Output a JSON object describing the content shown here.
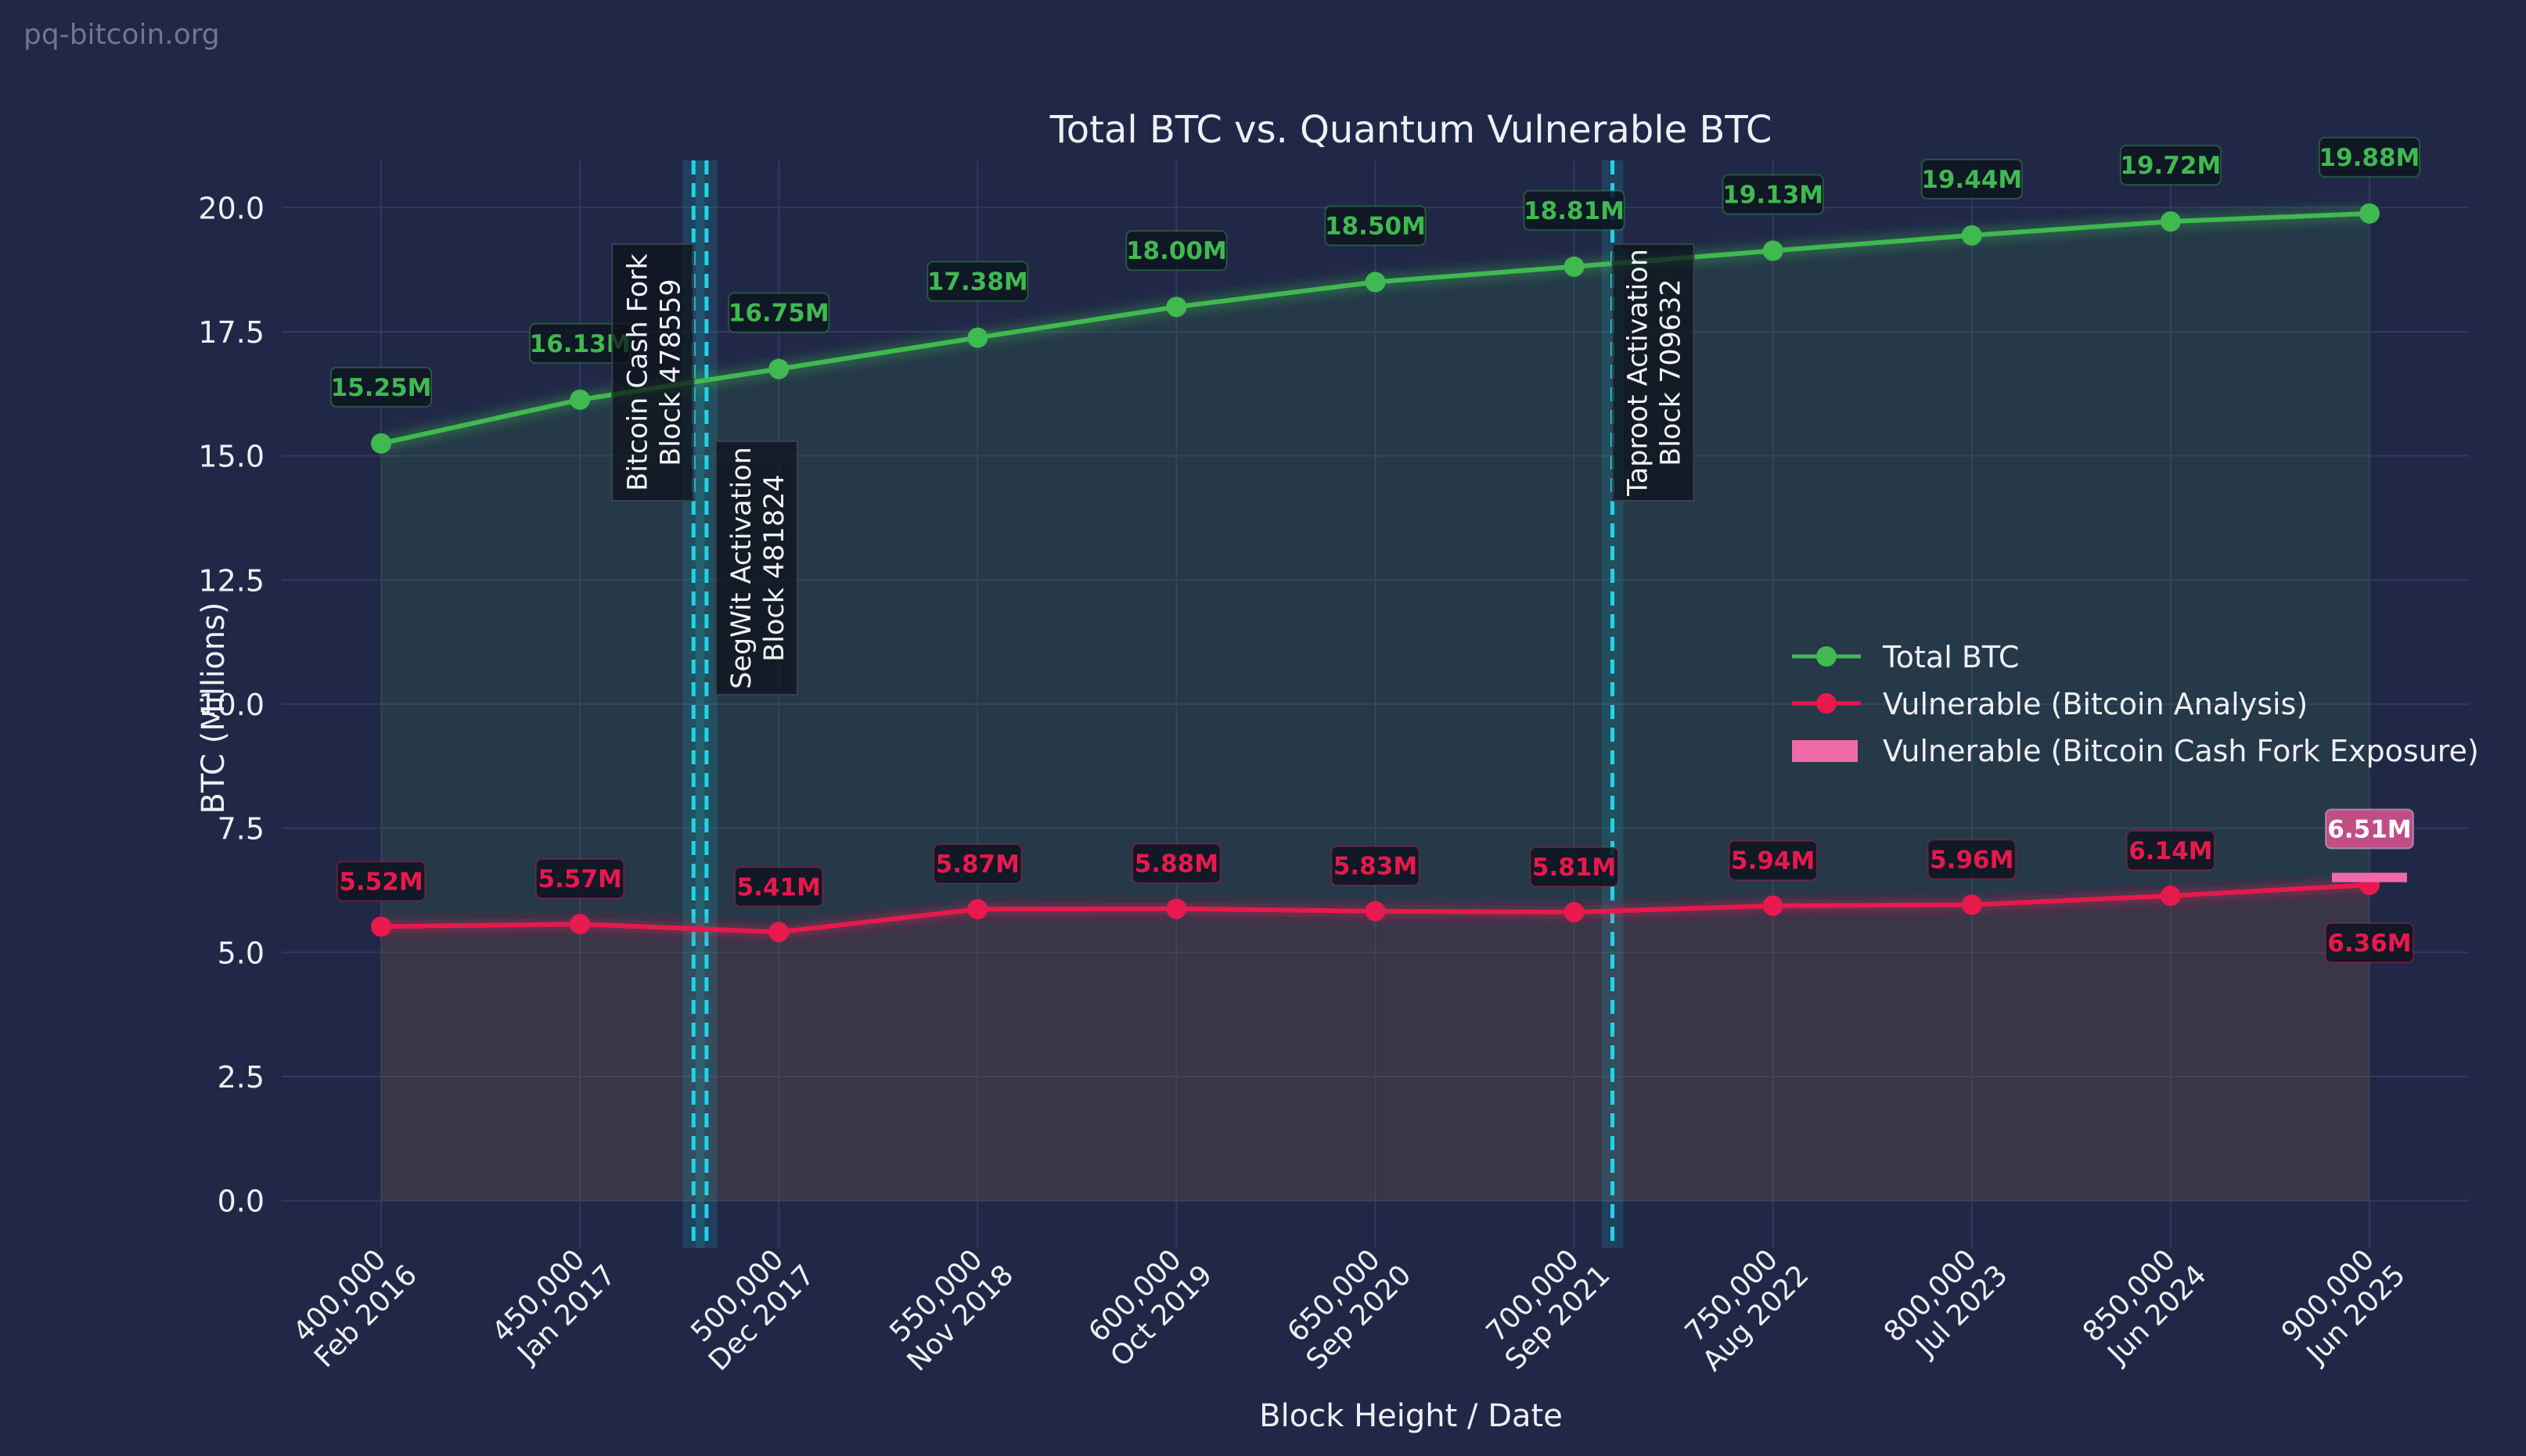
{
  "watermark": "pq-bitcoin.org",
  "chart_data": {
    "type": "line",
    "title": "Total BTC vs. Quantum Vulnerable BTC",
    "xlabel": "Block Height / Date",
    "ylabel": "BTC (Millions)",
    "xlim": [
      375000,
      925000
    ],
    "ylim": [
      -0.95,
      20.95
    ],
    "yticks": [
      0.0,
      2.5,
      5.0,
      7.5,
      10.0,
      12.5,
      15.0,
      17.5,
      20.0
    ],
    "ytick_labels": [
      "0.0",
      "2.5",
      "5.0",
      "7.5",
      "10.0",
      "12.5",
      "15.0",
      "17.5",
      "20.0"
    ],
    "x": [
      400000,
      450000,
      500000,
      550000,
      600000,
      650000,
      700000,
      750000,
      800000,
      850000,
      900000
    ],
    "xtick_labels": [
      {
        "block": "400,000",
        "date": "Feb 2016"
      },
      {
        "block": "450,000",
        "date": "Jan 2017"
      },
      {
        "block": "500,000",
        "date": "Dec 2017"
      },
      {
        "block": "550,000",
        "date": "Nov 2018"
      },
      {
        "block": "600,000",
        "date": "Oct 2019"
      },
      {
        "block": "650,000",
        "date": "Sep 2020"
      },
      {
        "block": "700,000",
        "date": "Sep 2021"
      },
      {
        "block": "750,000",
        "date": "Aug 2022"
      },
      {
        "block": "800,000",
        "date": "Jul 2023"
      },
      {
        "block": "850,000",
        "date": "Jun 2024"
      },
      {
        "block": "900,000",
        "date": "Jun 2025"
      }
    ],
    "grid": true,
    "legend_position": "center-right",
    "series": [
      {
        "name": "Total BTC",
        "color": "#3fb950",
        "values": [
          15.25,
          16.13,
          16.75,
          17.38,
          18.0,
          18.5,
          18.81,
          19.13,
          19.44,
          19.72,
          19.88
        ],
        "labels": [
          "15.25M",
          "16.13M",
          "16.75M",
          "17.38M",
          "18.00M",
          "18.50M",
          "18.81M",
          "19.13M",
          "19.44M",
          "19.72M",
          "19.88M"
        ]
      },
      {
        "name": "Vulnerable (Bitcoin Analysis)",
        "color": "#e8194d",
        "values": [
          5.52,
          5.57,
          5.41,
          5.87,
          5.88,
          5.83,
          5.81,
          5.94,
          5.96,
          6.14,
          6.36
        ],
        "labels": [
          "5.52M",
          "5.57M",
          "5.41M",
          "5.87M",
          "5.88M",
          "5.83M",
          "5.81M",
          "5.94M",
          "5.96M",
          "6.14M",
          "6.36M"
        ]
      },
      {
        "name": "Vulnerable (Bitcoin Cash Fork Exposure)",
        "color": "#f06aa8",
        "x": 900000,
        "value": 6.51,
        "label": "6.51M"
      }
    ],
    "events": [
      {
        "name": "Bitcoin Cash Fork",
        "block": 478559,
        "label_line1": "Bitcoin Cash Fork",
        "label_line2": "Block 478559"
      },
      {
        "name": "SegWit Activation",
        "block": 481824,
        "label_line1": "SegWit Activation",
        "label_line2": "Block 481824"
      },
      {
        "name": "Taproot Activation",
        "block": 709632,
        "label_line1": "Taproot Activation",
        "label_line2": "Block 709632"
      }
    ]
  }
}
